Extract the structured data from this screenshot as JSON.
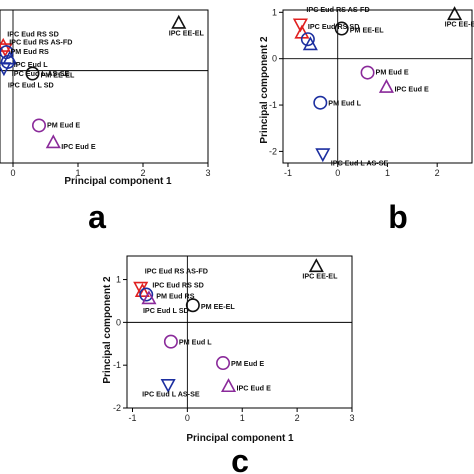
{
  "chart_data": [
    {
      "panel_label": "a",
      "type": "scatter",
      "xlabel": "Principal component 1",
      "ylabel": "",
      "xlim": [
        -0.2,
        3
      ],
      "ylim": [
        -1.6,
        1.05
      ],
      "xticks": [
        "0",
        "1",
        "2",
        "3"
      ],
      "yticks": [],
      "points": [
        {
          "label": "IPC EE-EL",
          "x": 2.55,
          "y": 0.82,
          "shape": "triangle-up",
          "color": "#111111"
        },
        {
          "label": "IPC Eud RS SD",
          "x": -0.15,
          "y": 0.42,
          "shape": "triangle-up",
          "color": "#e02020"
        },
        {
          "label": "IPC Eud RS AS-FD",
          "x": -0.12,
          "y": 0.38,
          "shape": "triangle-down",
          "color": "#e02020"
        },
        {
          "label": "PM Eud RS",
          "x": -0.1,
          "y": 0.32,
          "shape": "circle",
          "color": "#1c2fa0"
        },
        {
          "label": "IPC Eud L",
          "x": -0.05,
          "y": 0.2,
          "shape": "triangle-up",
          "color": "#1c2fa0"
        },
        {
          "label": "IPC Eud L AS-SE",
          "x": -0.08,
          "y": 0.15,
          "shape": "circle",
          "color": "#1c2fa0"
        },
        {
          "label": "IPC Eud L SD",
          "x": -0.14,
          "y": 0.05,
          "shape": "triangle-down",
          "color": "#1c2fa0"
        },
        {
          "label": "PM EE-EL",
          "x": 0.3,
          "y": -0.05,
          "shape": "circle",
          "color": "#111111"
        },
        {
          "label": "PM Eud E",
          "x": 0.4,
          "y": -0.95,
          "shape": "circle",
          "color": "#8a2a9a"
        },
        {
          "label": "IPC Eud E",
          "x": 0.62,
          "y": -1.25,
          "shape": "triangle-up",
          "color": "#8a2a9a"
        }
      ]
    },
    {
      "panel_label": "b",
      "type": "scatter",
      "xlabel": "",
      "ylabel": "Principal component 2",
      "xlim": [
        -1.1,
        2.7
      ],
      "ylim": [
        -2.25,
        1.05
      ],
      "xticks": [
        "-1",
        "0",
        "1",
        "2"
      ],
      "yticks": [
        "1",
        "0",
        "-1",
        "-2"
      ],
      "points": [
        {
          "label": "IPC EE-EL",
          "x": 2.35,
          "y": 0.95,
          "shape": "triangle-up",
          "color": "#111111"
        },
        {
          "label": "IPC Eud RS AS-FD",
          "x": -0.75,
          "y": 0.75,
          "shape": "triangle-down",
          "color": "#e02020"
        },
        {
          "label": "IPC Eud RS SD",
          "x": -0.72,
          "y": 0.55,
          "shape": "triangle-up",
          "color": "#e02020"
        },
        {
          "label": "PM EE-EL",
          "x": 0.08,
          "y": 0.65,
          "shape": "circle",
          "color": "#111111"
        },
        {
          "label": "",
          "x": -0.6,
          "y": 0.42,
          "shape": "circle",
          "color": "#1c2fa0"
        },
        {
          "label": "",
          "x": -0.55,
          "y": 0.3,
          "shape": "triangle-up",
          "color": "#1c2fa0"
        },
        {
          "label": "PM Eud E",
          "x": 0.6,
          "y": -0.3,
          "shape": "circle",
          "color": "#8a2a9a"
        },
        {
          "label": "IPC Eud E",
          "x": 0.98,
          "y": -0.62,
          "shape": "triangle-up",
          "color": "#8a2a9a"
        },
        {
          "label": "PM Eud L",
          "x": -0.35,
          "y": -0.95,
          "shape": "circle",
          "color": "#1c2fa0"
        },
        {
          "label": "IPC Eud L AS-SE",
          "x": -0.3,
          "y": -2.05,
          "shape": "triangle-down",
          "color": "#1c2fa0"
        }
      ]
    },
    {
      "panel_label": "c",
      "type": "scatter",
      "xlabel": "Principal component 1",
      "ylabel": "Principal component 2",
      "xlim": [
        -1.1,
        3
      ],
      "ylim": [
        -2,
        1.55
      ],
      "xticks": [
        "-1",
        "0",
        "1",
        "2",
        "3"
      ],
      "yticks": [
        "1",
        "0",
        "-1",
        "-2"
      ],
      "points": [
        {
          "label": "IPC EE-EL",
          "x": 2.35,
          "y": 1.3,
          "shape": "triangle-up",
          "color": "#111111"
        },
        {
          "label": "IPC Eud RS AS-FD",
          "x": -0.85,
          "y": 0.82,
          "shape": "triangle-down",
          "color": "#e02020"
        },
        {
          "label": "IPC Eud RS SD",
          "x": -0.82,
          "y": 0.72,
          "shape": "triangle-up",
          "color": "#e02020"
        },
        {
          "label": "PM Eud RS",
          "x": -0.75,
          "y": 0.65,
          "shape": "circle",
          "color": "#1c2fa0"
        },
        {
          "label": "IPC Eud L SD",
          "x": -0.7,
          "y": 0.55,
          "shape": "triangle-up",
          "color": "#8a2a9a"
        },
        {
          "label": "PM EE-EL",
          "x": 0.1,
          "y": 0.4,
          "shape": "circle",
          "color": "#111111"
        },
        {
          "label": "PM Eud L",
          "x": -0.3,
          "y": -0.45,
          "shape": "circle",
          "color": "#8a2a9a"
        },
        {
          "label": "PM Eud E",
          "x": 0.65,
          "y": -0.95,
          "shape": "circle",
          "color": "#8a2a9a"
        },
        {
          "label": "IPC Eud E",
          "x": 0.75,
          "y": -1.5,
          "shape": "triangle-up",
          "color": "#8a2a9a"
        },
        {
          "label": "IPC Eud L AS-SE",
          "x": -0.35,
          "y": -1.45,
          "shape": "triangle-down",
          "color": "#1c2fa0"
        }
      ]
    }
  ]
}
